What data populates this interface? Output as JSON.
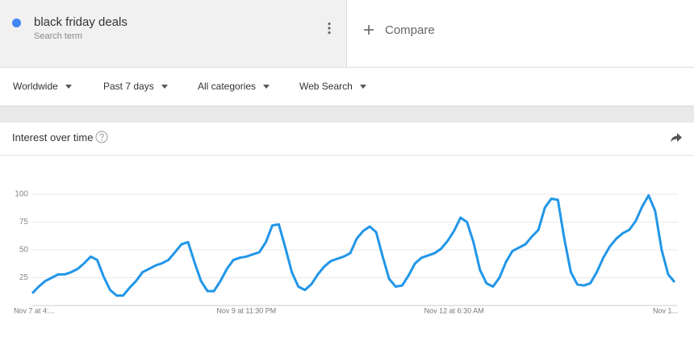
{
  "search": {
    "term": "black friday deals",
    "subtitle": "Search term",
    "compare": "Compare"
  },
  "filters": [
    "Worldwide",
    "Past 7 days",
    "All categories",
    "Web Search"
  ],
  "card": {
    "title": "Interest over time"
  },
  "chart_data": {
    "type": "line",
    "categories": [
      "Nov 7 at 4:...",
      null,
      null,
      null,
      null,
      null,
      null,
      null,
      null,
      null,
      null,
      null,
      null,
      null,
      null,
      null,
      null,
      null,
      null,
      null,
      null,
      null,
      null,
      null,
      null,
      null,
      null,
      null,
      null,
      null,
      null,
      null,
      null,
      "Nov 9 at 11:30 PM",
      null,
      null,
      null,
      null,
      null,
      null,
      null,
      null,
      null,
      null,
      null,
      null,
      null,
      null,
      null,
      null,
      null,
      null,
      null,
      null,
      null,
      null,
      null,
      null,
      null,
      null,
      null,
      null,
      null,
      null,
      null,
      "Nov 12 at 6:30 AM",
      null,
      null,
      null,
      null,
      null,
      null,
      null,
      null,
      null,
      null,
      null,
      null,
      null,
      null,
      null,
      null,
      null,
      null,
      null,
      null,
      null,
      null,
      null,
      null,
      null,
      null,
      null,
      null,
      null,
      null,
      null,
      null,
      null,
      "Nov 1..."
    ],
    "series": [
      {
        "name": "black friday deals",
        "color": "#2196e8",
        "values": [
          11,
          17,
          22,
          25,
          28,
          28,
          30,
          33,
          38,
          44,
          41,
          26,
          14,
          9,
          9,
          16,
          22,
          30,
          33,
          36,
          38,
          41,
          48,
          55,
          57,
          39,
          22,
          13,
          13,
          22,
          33,
          41,
          43,
          44,
          46,
          48,
          57,
          72,
          73,
          52,
          30,
          17,
          14,
          19,
          28,
          35,
          40,
          42,
          44,
          47,
          60,
          67,
          71,
          66,
          44,
          24,
          17,
          18,
          27,
          38,
          43,
          45,
          47,
          51,
          58,
          67,
          79,
          75,
          57,
          32,
          20,
          17,
          25,
          39,
          49,
          52,
          55,
          62,
          68,
          88,
          96,
          95,
          60,
          30,
          19,
          18,
          20,
          30,
          43,
          53,
          60,
          65,
          68,
          76,
          89,
          99,
          85,
          50,
          28,
          21
        ]
      }
    ],
    "ylim": [
      0,
      100
    ],
    "yticks": [
      25,
      50,
      75,
      100
    ],
    "grid": true
  }
}
